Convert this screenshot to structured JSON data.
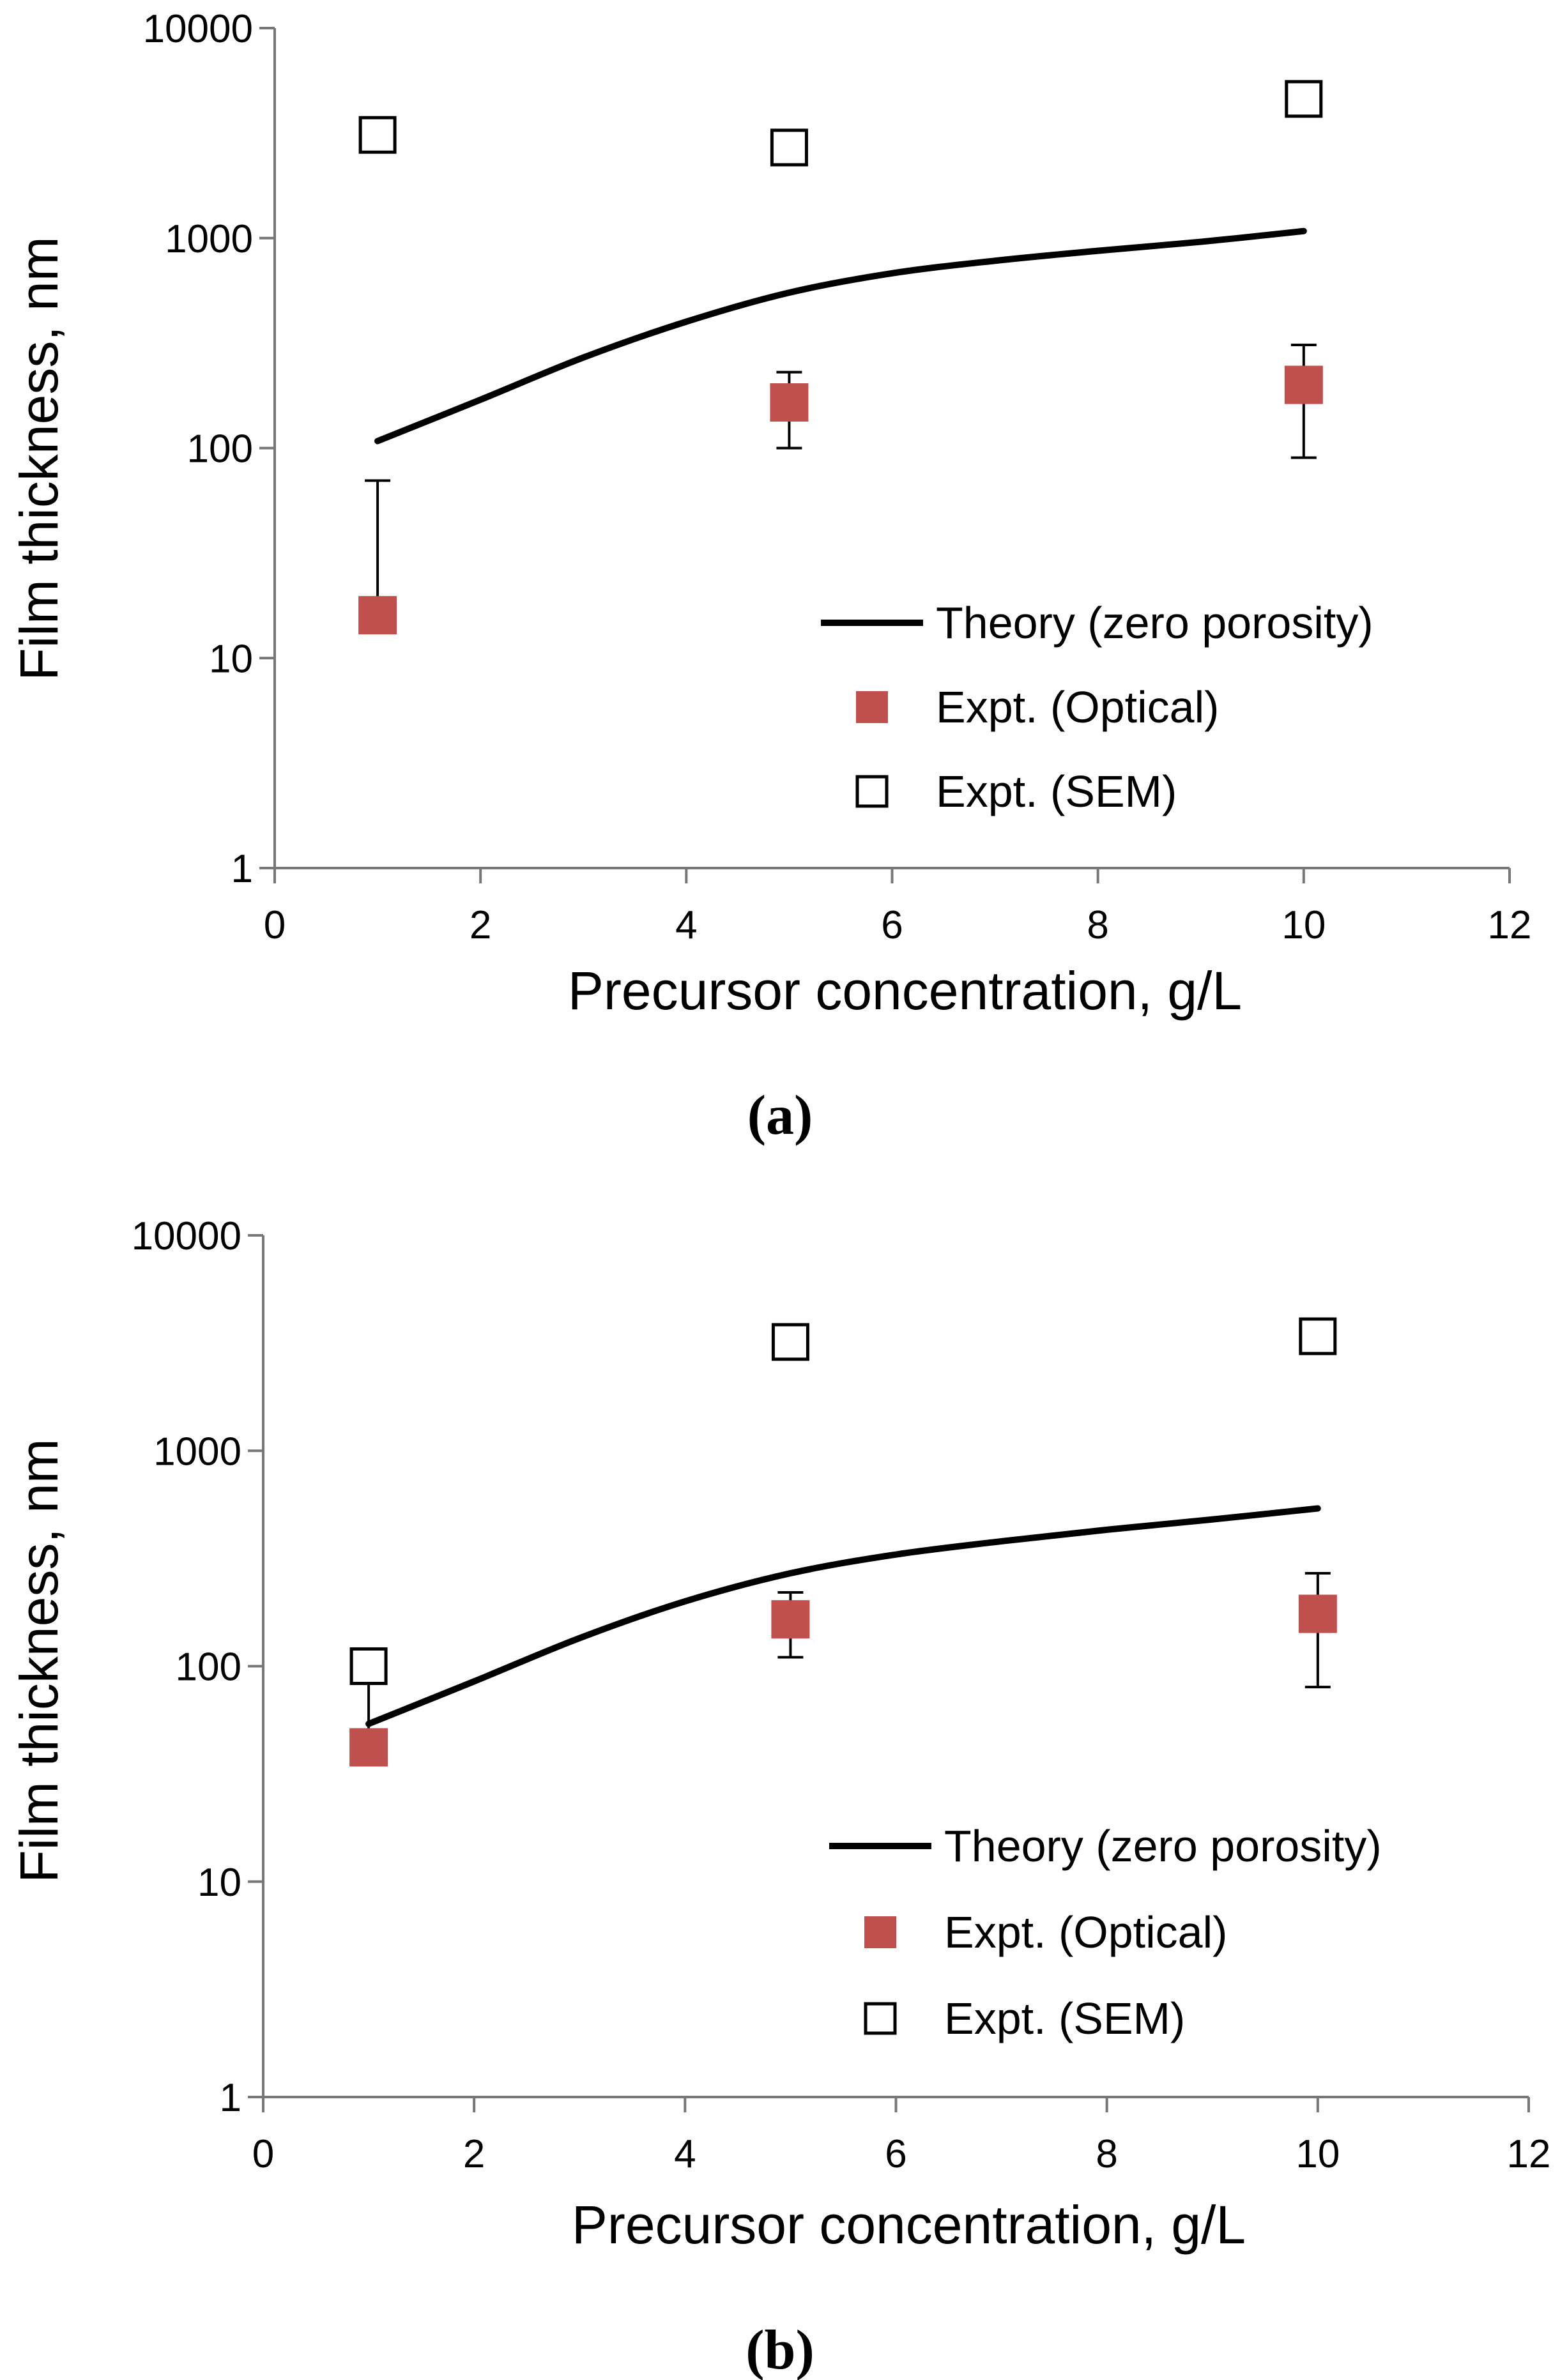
{
  "chart_data": [
    {
      "type": "scatter",
      "panel_label": "(a)",
      "xlabel": "Precursor concentration, g/L",
      "ylabel": "Film thickness, nm",
      "xlim": [
        0,
        12
      ],
      "ylim": [
        1,
        10000
      ],
      "yscale": "log",
      "xticks": [
        "0",
        "2",
        "4",
        "6",
        "8",
        "10",
        "12"
      ],
      "yticks": [
        "1",
        "10",
        "100",
        "1000",
        "10000"
      ],
      "legend_position": "bottom-right",
      "series": [
        {
          "name": "Theory (zero porosity)",
          "kind": "line",
          "color": "#000000",
          "x": [
            1,
            2,
            3,
            4,
            5,
            6,
            7,
            8,
            9,
            10
          ],
          "y": [
            108,
            170,
            270,
            400,
            550,
            680,
            780,
            870,
            960,
            1080
          ]
        },
        {
          "name": "Expt. (Optical)",
          "kind": "marker-filled",
          "color": "#c0504d",
          "x": [
            1,
            5,
            10
          ],
          "y": [
            16,
            165,
            200
          ],
          "err_low": [
            16,
            100,
            90
          ],
          "err_high": [
            70,
            230,
            310
          ]
        },
        {
          "name": "Expt. (SEM)",
          "kind": "marker-open",
          "color": "#000000",
          "x": [
            1,
            5,
            10
          ],
          "y": [
            3100,
            2700,
            4600
          ]
        }
      ]
    },
    {
      "type": "scatter",
      "panel_label": "(b)",
      "xlabel": "Precursor concentration, g/L",
      "ylabel": "Film thickness, nm",
      "xlim": [
        0,
        12
      ],
      "ylim": [
        1,
        10000
      ],
      "yscale": "log",
      "xticks": [
        "0",
        "2",
        "4",
        "6",
        "8",
        "10",
        "12"
      ],
      "yticks": [
        "1",
        "10",
        "100",
        "1000",
        "10000"
      ],
      "legend_position": "bottom-right",
      "series": [
        {
          "name": "Theory (zero porosity)",
          "kind": "line",
          "color": "#000000",
          "x": [
            1,
            2,
            3,
            4,
            5,
            6,
            7,
            8,
            9,
            10
          ],
          "y": [
            54,
            85,
            135,
            200,
            270,
            330,
            380,
            430,
            480,
            540
          ]
        },
        {
          "name": "Expt. (Optical)",
          "kind": "marker-filled",
          "color": "#c0504d",
          "x": [
            1,
            5,
            10
          ],
          "y": [
            42,
            165,
            175
          ],
          "err_low": [
            42,
            110,
            80
          ],
          "err_high": [
            95,
            220,
            270
          ]
        },
        {
          "name": "Expt. (SEM)",
          "kind": "marker-open",
          "color": "#000000",
          "x": [
            1,
            5,
            10
          ],
          "y": [
            100,
            3200,
            3400
          ]
        }
      ]
    }
  ]
}
